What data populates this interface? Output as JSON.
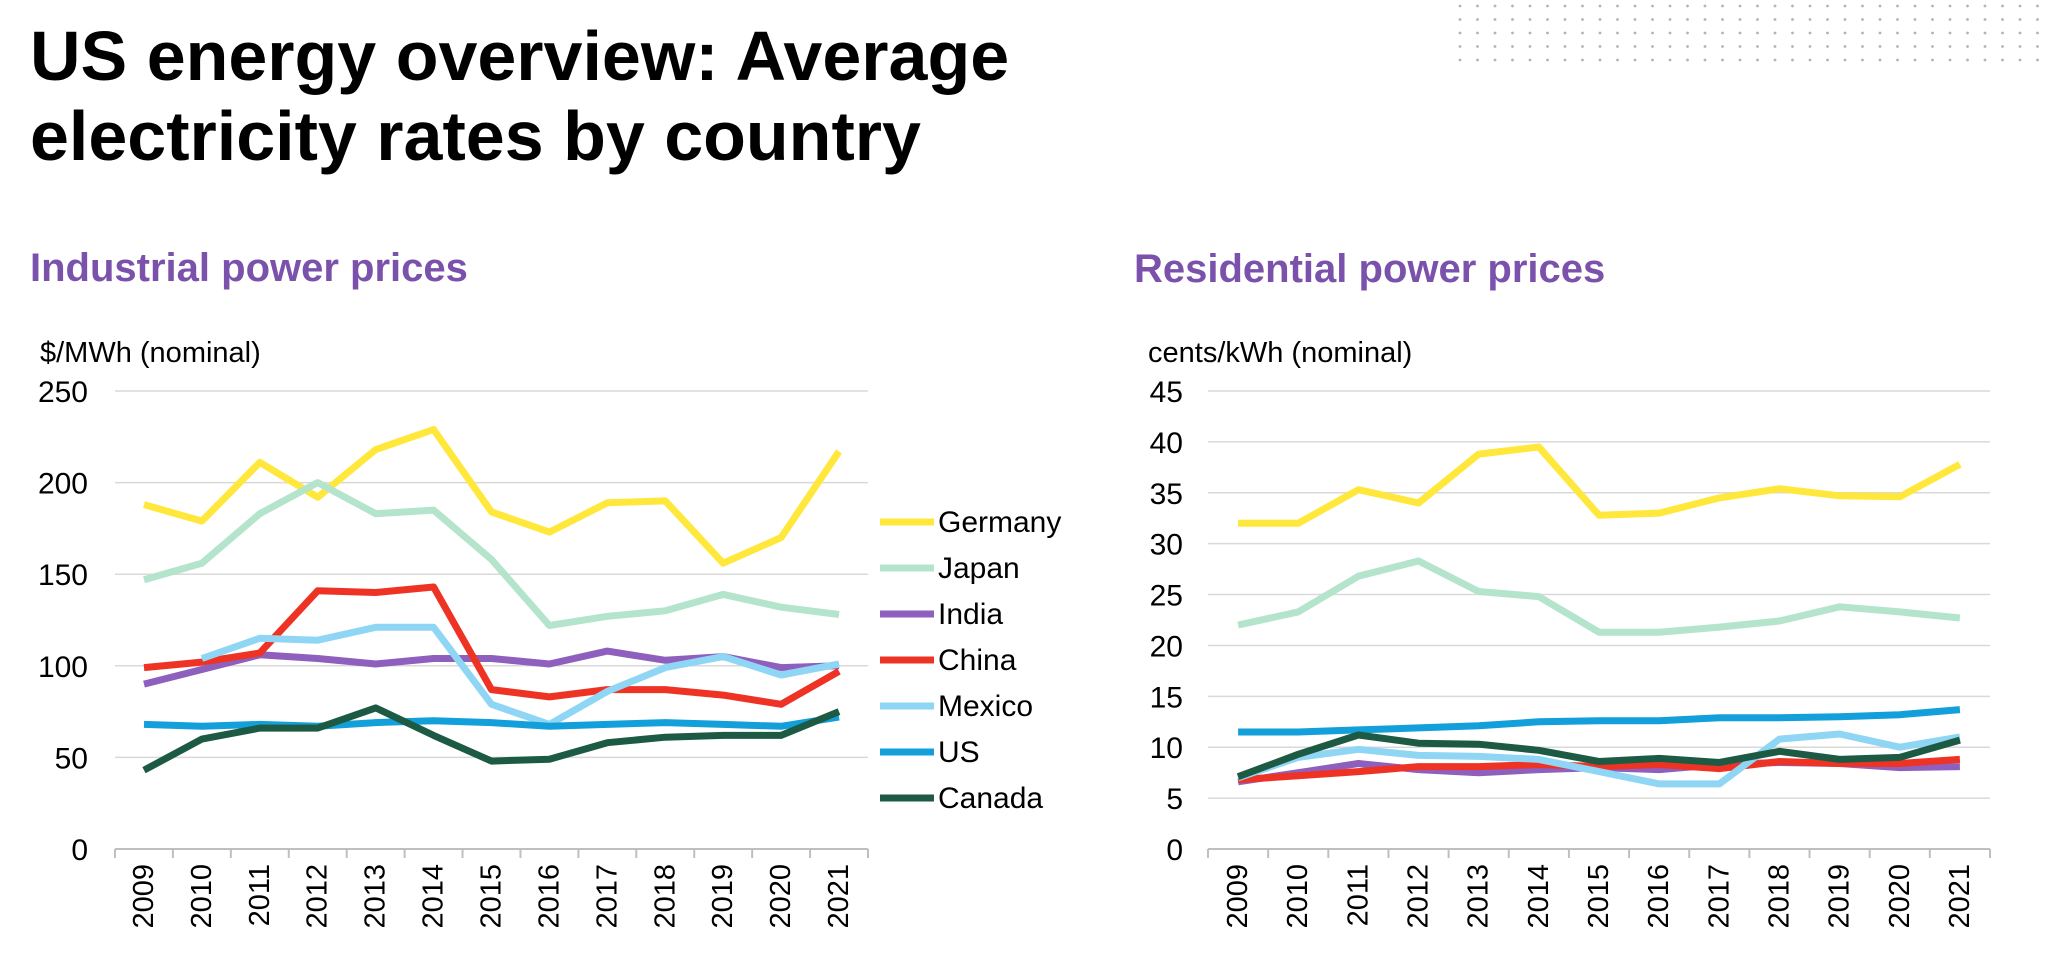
{
  "title_lines": [
    "US energy overview: Average",
    "electricity rates by country"
  ],
  "colors": {
    "Germany": "#ffe83b",
    "Japan": "#b4e4cc",
    "India": "#8e5fbd",
    "China": "#ee3325",
    "Mexico": "#8fd6f5",
    "US": "#139fda",
    "Canada": "#1d5a43",
    "subtitle": "#7b52ab",
    "grid": "#d9d9d9"
  },
  "chart_data": [
    {
      "type": "line",
      "title": "Industrial power prices",
      "ylabel": "$/MWh (nominal)",
      "xlabel": "",
      "categories": [
        "2009",
        "2010",
        "2011",
        "2012",
        "2013",
        "2014",
        "2015",
        "2016",
        "2017",
        "2018",
        "2019",
        "2020",
        "2021"
      ],
      "ylim": [
        0,
        250
      ],
      "yticks": [
        0,
        50,
        100,
        150,
        200,
        250
      ],
      "grid": true,
      "legend": "right",
      "series": [
        {
          "name": "Germany",
          "values": [
            188,
            179,
            211,
            192,
            218,
            229,
            184,
            173,
            189,
            190,
            156,
            170,
            217
          ]
        },
        {
          "name": "Japan",
          "values": [
            147,
            156,
            183,
            200,
            183,
            185,
            158,
            122,
            127,
            130,
            139,
            132,
            128
          ]
        },
        {
          "name": "India",
          "values": [
            90,
            98,
            106,
            104,
            101,
            104,
            104,
            101,
            108,
            103,
            105,
            99,
            100
          ]
        },
        {
          "name": "China",
          "values": [
            99,
            102,
            107,
            141,
            140,
            143,
            87,
            83,
            87,
            87,
            84,
            79,
            97
          ]
        },
        {
          "name": "Mexico",
          "values": [
            null,
            104,
            115,
            114,
            121,
            121,
            79,
            68,
            86,
            99,
            105,
            95,
            101
          ]
        },
        {
          "name": "US",
          "values": [
            68,
            67,
            68,
            67,
            69,
            70,
            69,
            67,
            68,
            69,
            68,
            67,
            72
          ]
        },
        {
          "name": "Canada",
          "values": [
            43,
            60,
            66,
            66,
            77,
            62,
            48,
            49,
            58,
            61,
            62,
            62,
            75
          ]
        }
      ]
    },
    {
      "type": "line",
      "title": "Residential power prices",
      "ylabel": "cents/kWh (nominal)",
      "xlabel": "",
      "categories": [
        "2009",
        "2010",
        "2011",
        "2012",
        "2013",
        "2014",
        "2015",
        "2016",
        "2017",
        "2018",
        "2019",
        "2020",
        "2021"
      ],
      "ylim": [
        0,
        45
      ],
      "yticks": [
        0,
        5,
        10,
        15,
        20,
        25,
        30,
        35,
        40,
        45
      ],
      "grid": true,
      "legend": "none",
      "series": [
        {
          "name": "Germany",
          "values": [
            32.0,
            32.0,
            35.3,
            34.0,
            38.8,
            39.5,
            32.8,
            33.0,
            34.5,
            35.4,
            34.7,
            34.6,
            37.8
          ]
        },
        {
          "name": "Japan",
          "values": [
            22.0,
            23.3,
            26.8,
            28.3,
            25.3,
            24.8,
            21.3,
            21.3,
            21.8,
            22.4,
            23.8,
            23.3,
            22.7
          ]
        },
        {
          "name": "India",
          "values": [
            6.6,
            7.5,
            8.4,
            7.8,
            7.5,
            7.8,
            8.0,
            7.8,
            8.3,
            8.5,
            8.4,
            8.0,
            8.1
          ]
        },
        {
          "name": "China",
          "values": [
            6.8,
            7.2,
            7.6,
            8.1,
            8.1,
            8.3,
            8.1,
            8.3,
            7.9,
            8.6,
            8.4,
            8.4,
            8.8
          ]
        },
        {
          "name": "Mexico",
          "values": [
            7.0,
            9.0,
            9.8,
            9.2,
            9.1,
            8.8,
            7.6,
            6.4,
            6.4,
            10.8,
            11.3,
            10.0,
            11.0
          ]
        },
        {
          "name": "US",
          "values": [
            11.5,
            11.5,
            11.7,
            11.9,
            12.1,
            12.5,
            12.6,
            12.6,
            12.9,
            12.9,
            13.0,
            13.2,
            13.7
          ]
        },
        {
          "name": "Canada",
          "values": [
            7.1,
            9.3,
            11.2,
            10.4,
            10.3,
            9.7,
            8.6,
            8.9,
            8.5,
            9.6,
            8.8,
            9.0,
            10.7
          ]
        }
      ]
    }
  ]
}
